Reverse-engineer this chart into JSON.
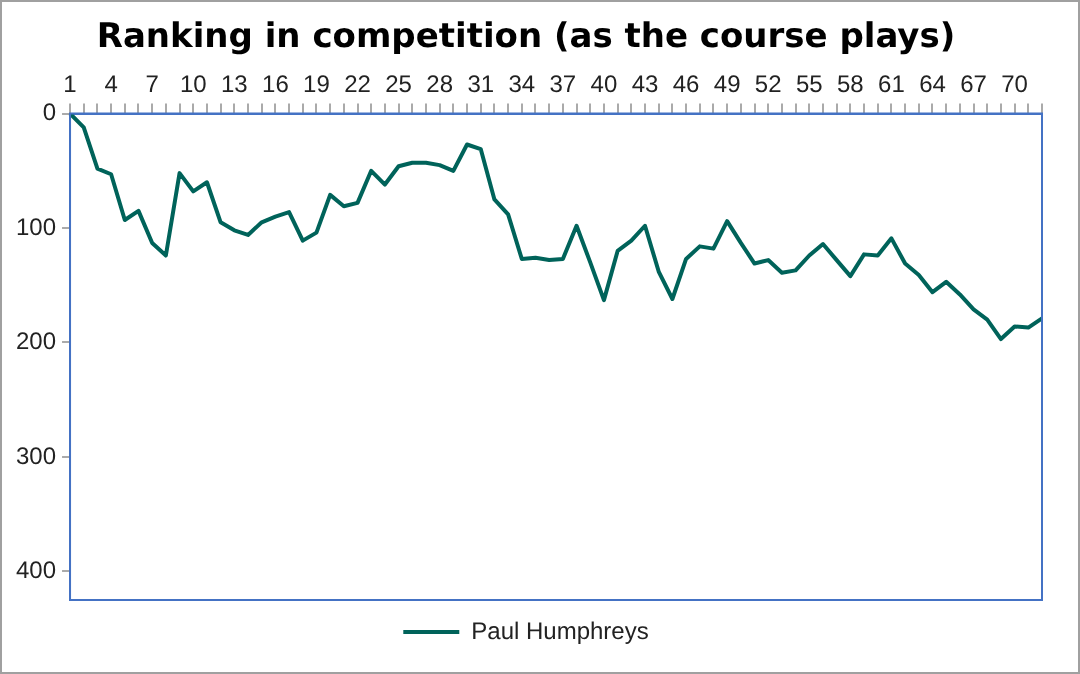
{
  "chart_data": {
    "type": "line",
    "title": "Ranking in competition (as the course plays)",
    "categories": [
      "1",
      null,
      null,
      "4",
      null,
      null,
      "7",
      null,
      null,
      "10",
      null,
      null,
      "13",
      null,
      null,
      "16",
      null,
      null,
      "19",
      null,
      null,
      "22",
      null,
      null,
      "25",
      null,
      null,
      "28",
      null,
      null,
      "31",
      null,
      null,
      "34",
      null,
      null,
      "37",
      null,
      null,
      "40",
      null,
      null,
      "43",
      null,
      null,
      "46",
      null,
      null,
      "49",
      null,
      null,
      "52",
      null,
      null,
      "55",
      null,
      null,
      "58",
      null,
      null,
      "61",
      null,
      null,
      "64",
      null,
      null,
      "67",
      null,
      null,
      "70",
      null,
      null
    ],
    "series": [
      {
        "name": "Paul Humphreys",
        "color": "#00635a",
        "values": [
          0,
          12,
          48,
          53,
          93,
          85,
          113,
          124,
          52,
          68,
          60,
          95,
          102,
          106,
          95,
          90,
          86,
          111,
          104,
          71,
          81,
          78,
          50,
          62,
          46,
          43,
          43,
          45,
          50,
          27,
          31,
          75,
          88,
          127,
          126,
          128,
          127,
          98,
          130,
          163,
          120,
          111,
          98,
          138,
          162,
          127,
          116,
          118,
          94,
          113,
          131,
          128,
          139,
          137,
          124,
          114,
          128,
          142,
          123,
          124,
          109,
          131,
          141,
          156,
          147,
          158,
          171,
          180,
          197,
          186,
          187,
          179
        ]
      }
    ],
    "ylim": [
      425,
      0
    ],
    "yticks": [
      0,
      100,
      200,
      300,
      400
    ],
    "grid": false,
    "legend": "bottom",
    "marker": "none",
    "line_style": "solid"
  }
}
